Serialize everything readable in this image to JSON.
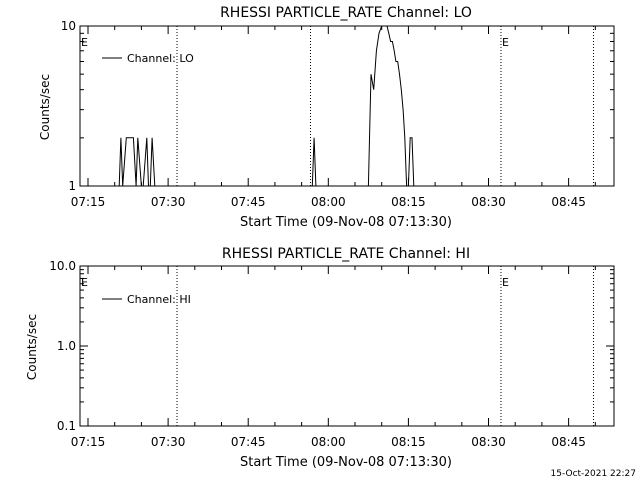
{
  "footer": {
    "timestamp": "15-Oct-2021 22:27"
  },
  "chart_data": [
    {
      "type": "line",
      "title": "RHESSI PARTICLE_RATE Channel: LO",
      "xlabel": "Start Time (09-Nov-08 07:13:30)",
      "ylabel": "Counts/sec",
      "xlim": [
        "07:13:30",
        "08:53:30"
      ],
      "ylim": [
        1,
        10
      ],
      "yscale": "log",
      "x_ticks": [
        "07:15",
        "07:30",
        "07:45",
        "08:00",
        "08:15",
        "08:30",
        "08:45"
      ],
      "y_ticks": [
        "1",
        "10"
      ],
      "legend": {
        "label": "Channel: LO",
        "position": "top-left"
      },
      "markers": [
        {
          "time": "07:13:30",
          "label": "E"
        },
        {
          "time": "07:31:40",
          "label": ""
        },
        {
          "time": "07:56:40",
          "label": ""
        },
        {
          "time": "08:32:20",
          "label": "E"
        },
        {
          "time": "08:49:40",
          "label": ""
        }
      ],
      "series": [
        {
          "name": "Channel: LO",
          "x": [
            "07:20:50",
            "07:21:10",
            "07:21:30",
            "07:22:10",
            "07:23:30",
            "07:24:00",
            "07:24:20",
            "07:25:00",
            "07:25:20",
            "07:26:00",
            "07:26:20",
            "07:26:40",
            "07:27:00",
            "07:27:30",
            "07:27:50",
            "07:57:00",
            "07:57:20",
            "07:57:40",
            "08:07:30",
            "08:08:00",
            "08:08:30",
            "08:09:00",
            "08:09:30",
            "08:10:00",
            "08:10:20",
            "08:10:40",
            "08:11:00",
            "08:11:20",
            "08:11:40",
            "08:12:00",
            "08:12:20",
            "08:12:40",
            "08:13:00",
            "08:13:20",
            "08:13:40",
            "08:14:00",
            "08:14:20",
            "08:14:40",
            "08:15:00",
            "08:15:20",
            "08:15:40",
            "08:16:00",
            "08:16:20",
            "08:16:40",
            "08:17:00",
            "08:17:20",
            "08:17:40",
            "08:18:00",
            "08:18:30"
          ],
          "y": [
            1,
            2,
            1,
            2,
            2,
            1,
            2,
            1,
            1,
            2,
            1,
            1,
            2,
            1,
            1,
            1,
            2,
            1,
            1,
            5,
            4,
            7,
            9,
            10,
            10,
            10,
            10,
            9,
            8,
            8,
            7,
            6,
            6,
            5,
            4,
            3,
            2,
            1,
            1,
            2,
            2,
            1,
            1,
            1,
            1,
            1,
            1,
            1,
            1
          ]
        }
      ]
    },
    {
      "type": "line",
      "title": "RHESSI PARTICLE_RATE Channel: HI",
      "xlabel": "Start Time (09-Nov-08 07:13:30)",
      "ylabel": "Counts/sec",
      "xlim": [
        "07:13:30",
        "08:53:30"
      ],
      "ylim": [
        0.1,
        10
      ],
      "yscale": "log",
      "x_ticks": [
        "07:15",
        "07:30",
        "07:45",
        "08:00",
        "08:15",
        "08:30",
        "08:45"
      ],
      "y_ticks": [
        "0.1",
        "1.0",
        "10.0"
      ],
      "legend": {
        "label": "Channel: HI",
        "position": "top-left"
      },
      "markers": [
        {
          "time": "07:13:30",
          "label": "E"
        },
        {
          "time": "07:31:40",
          "label": ""
        },
        {
          "time": "08:32:20",
          "label": "E"
        },
        {
          "time": "08:49:40",
          "label": ""
        }
      ],
      "series": [
        {
          "name": "Channel: HI",
          "x": [],
          "y": []
        }
      ]
    }
  ]
}
